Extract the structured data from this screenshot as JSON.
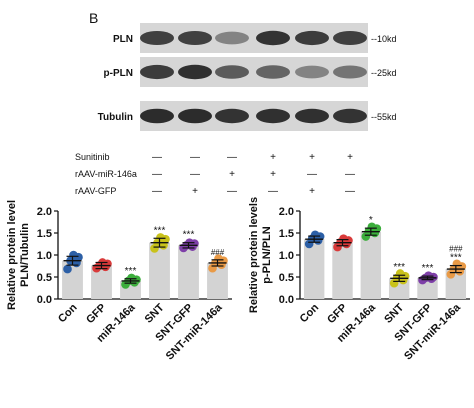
{
  "panel_label": "B",
  "blot": {
    "rows": [
      {
        "label": "PLN",
        "size": "--10kd",
        "intensity": [
          0.78,
          0.78,
          0.45,
          0.85,
          0.8,
          0.78
        ]
      },
      {
        "label": "p-PLN",
        "size": "--25kd",
        "intensity": [
          0.8,
          0.86,
          0.65,
          0.6,
          0.45,
          0.52
        ]
      },
      {
        "label": "Tubulin",
        "size": "--55kd",
        "intensity": [
          0.88,
          0.88,
          0.85,
          0.86,
          0.86,
          0.85
        ]
      }
    ]
  },
  "treatment_table": {
    "rows": [
      {
        "label": "Sunitinib",
        "marks": [
          "—",
          "—",
          "—",
          "+",
          "+",
          "+"
        ]
      },
      {
        "label": "rAAV-miR-146a",
        "marks": [
          "—",
          "—",
          "+",
          "+",
          "—",
          "—"
        ]
      },
      {
        "label": "rAAV-GFP",
        "marks": [
          "—",
          "+",
          "—",
          "—",
          "+",
          "—"
        ]
      }
    ]
  },
  "chart_data": [
    {
      "type": "bar",
      "ylabel_line1": "Relative protein level",
      "ylabel_line2": "PLN/Tubulin",
      "ylim": [
        0,
        2.0
      ],
      "yticks": [
        "0.0",
        "0.5",
        "1.0",
        "1.5",
        "2.0"
      ],
      "ytick_values": [
        0,
        0.5,
        1.0,
        1.5,
        2.0
      ],
      "categories": [
        "Con",
        "GFP",
        "miR-146a",
        "SNT",
        "SNT-GFP",
        "SNT-miR-146a"
      ],
      "values": [
        0.87,
        0.76,
        0.41,
        1.28,
        1.22,
        0.82
      ],
      "errors": [
        0.1,
        0.07,
        0.05,
        0.1,
        0.06,
        0.07
      ],
      "significance": [
        "",
        "",
        "***",
        "***",
        "***",
        "###"
      ],
      "points": [
        [
          0.68,
          0.82,
          0.87,
          0.95,
          1.0
        ],
        [
          0.7,
          0.73,
          0.76,
          0.8,
          0.83
        ],
        [
          0.33,
          0.38,
          0.41,
          0.44,
          0.48
        ],
        [
          1.15,
          1.22,
          1.28,
          1.36,
          1.4
        ],
        [
          1.16,
          1.19,
          1.22,
          1.26,
          1.28
        ],
        [
          0.7,
          0.78,
          0.82,
          0.87,
          0.92
        ]
      ],
      "point_colors": [
        "#2c5fa6",
        "#d93a3a",
        "#3cae3c",
        "#c9c21b",
        "#7e3fa8",
        "#e99a46"
      ]
    },
    {
      "type": "bar",
      "ylabel_line1": "Relative protein levels",
      "ylabel_line2": "p-PLN/PLN",
      "ylim": [
        0,
        2.0
      ],
      "yticks": [
        "0.0",
        "0.5",
        "1.0",
        "1.5",
        "2.0"
      ],
      "ytick_values": [
        0,
        0.5,
        1.0,
        1.5,
        2.0
      ],
      "categories": [
        "Con",
        "GFP",
        "miR-146a",
        "SNT",
        "SNT-GFP",
        "SNT-miR-146a"
      ],
      "values": [
        1.36,
        1.28,
        1.53,
        0.47,
        0.48,
        0.68
      ],
      "errors": [
        0.07,
        0.07,
        0.08,
        0.07,
        0.04,
        0.08
      ],
      "significance": [
        "",
        "",
        "*",
        "***",
        "***",
        "###\n***"
      ],
      "points": [
        [
          1.25,
          1.33,
          1.37,
          1.42,
          1.46
        ],
        [
          1.18,
          1.25,
          1.29,
          1.33,
          1.37
        ],
        [
          1.42,
          1.5,
          1.54,
          1.6,
          1.64
        ],
        [
          0.36,
          0.43,
          0.48,
          0.52,
          0.58
        ],
        [
          0.43,
          0.46,
          0.48,
          0.5,
          0.53
        ],
        [
          0.56,
          0.63,
          0.68,
          0.74,
          0.8
        ]
      ],
      "point_colors": [
        "#2c5fa6",
        "#d93a3a",
        "#3cae3c",
        "#c9c21b",
        "#7e3fa8",
        "#e99a46"
      ]
    }
  ]
}
